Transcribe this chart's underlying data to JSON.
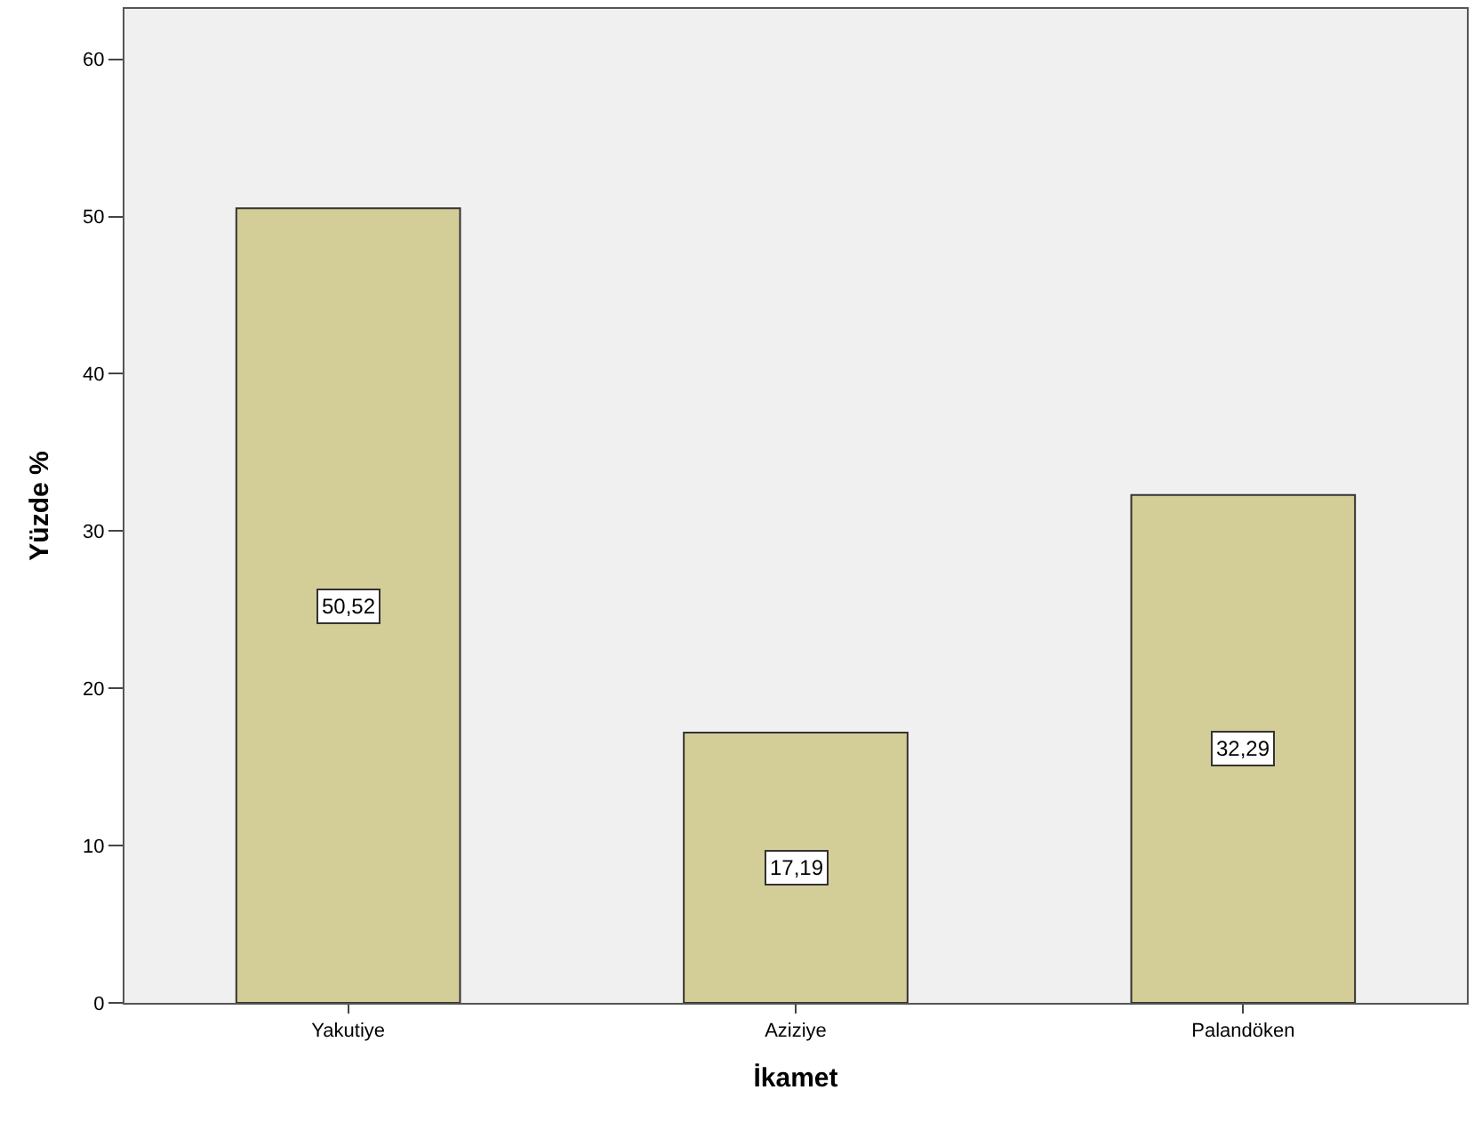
{
  "chart_data": {
    "type": "bar",
    "xlabel": "İkamet",
    "ylabel": "Yüzde %",
    "categories": [
      "Yakutiye",
      "Aziziye",
      "Palandöken"
    ],
    "values": [
      50.52,
      17.19,
      32.29
    ],
    "value_labels": [
      "50,52",
      "17,19",
      "32,29"
    ],
    "color": "#d3ce97",
    "ylim": [
      0,
      63.2
    ],
    "yticks": [
      0,
      10,
      20,
      30,
      40,
      50,
      60
    ],
    "grid": false,
    "legend": false
  }
}
